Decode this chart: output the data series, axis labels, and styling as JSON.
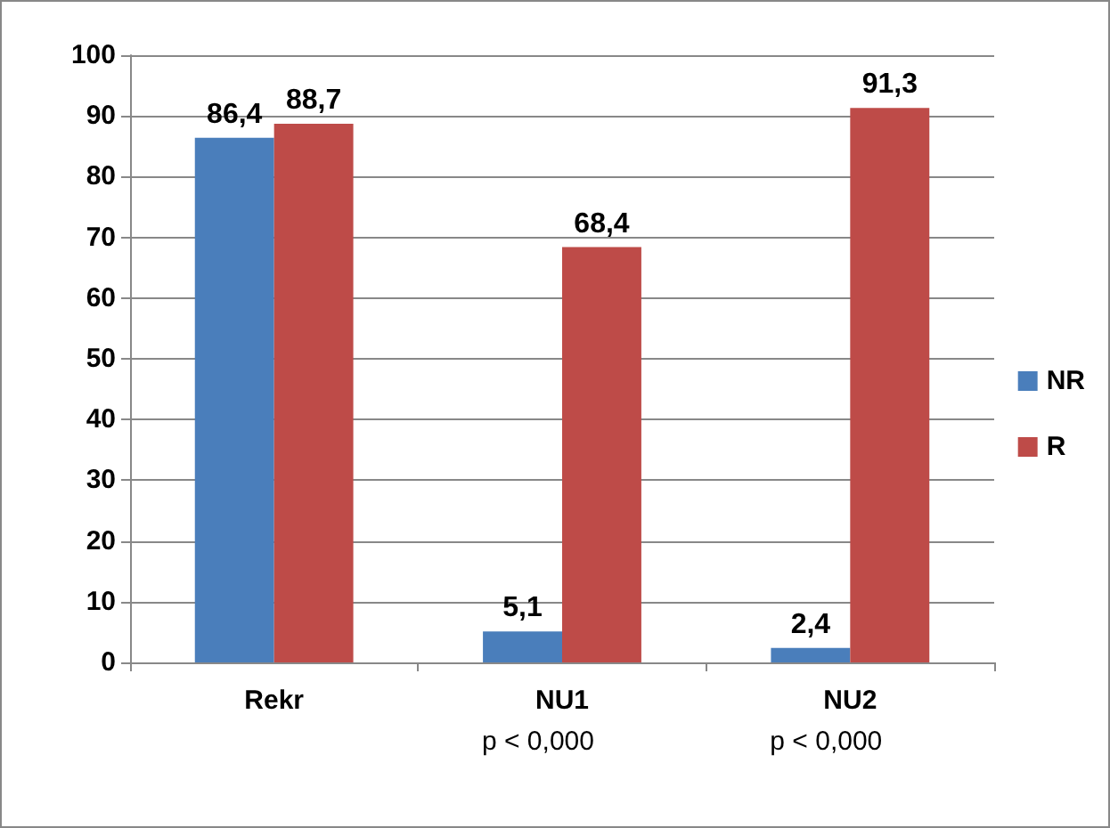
{
  "chart_data": {
    "type": "bar",
    "categories": [
      "Rekr",
      "NU1",
      "NU2"
    ],
    "series": [
      {
        "name": "NR",
        "color": "#4a7ebb",
        "values": [
          86.4,
          5.1,
          2.4
        ],
        "value_labels": [
          "86,4",
          "5,1",
          "2,4"
        ]
      },
      {
        "name": "R",
        "color": "#be4b48",
        "values": [
          88.7,
          68.4,
          91.3
        ],
        "value_labels": [
          "88,7",
          "68,4",
          "91,3"
        ]
      }
    ],
    "ylim": [
      0,
      100
    ],
    "yticks": [
      0,
      10,
      20,
      30,
      40,
      50,
      60,
      70,
      80,
      90,
      100
    ],
    "grid": "y",
    "legend": "right",
    "annotations": [
      "p < 0,000",
      "p < 0,000"
    ]
  }
}
